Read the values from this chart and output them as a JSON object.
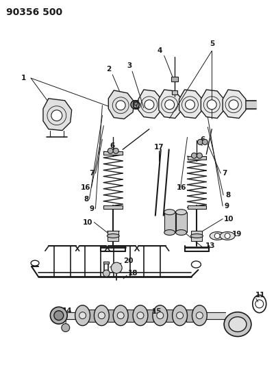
{
  "title": "90356 500",
  "bg_color": "#ffffff",
  "line_color": "#1a1a1a",
  "title_fontsize": 10,
  "label_fontsize": 7.5,
  "fig_width": 4.03,
  "fig_height": 5.33,
  "dpi": 100
}
